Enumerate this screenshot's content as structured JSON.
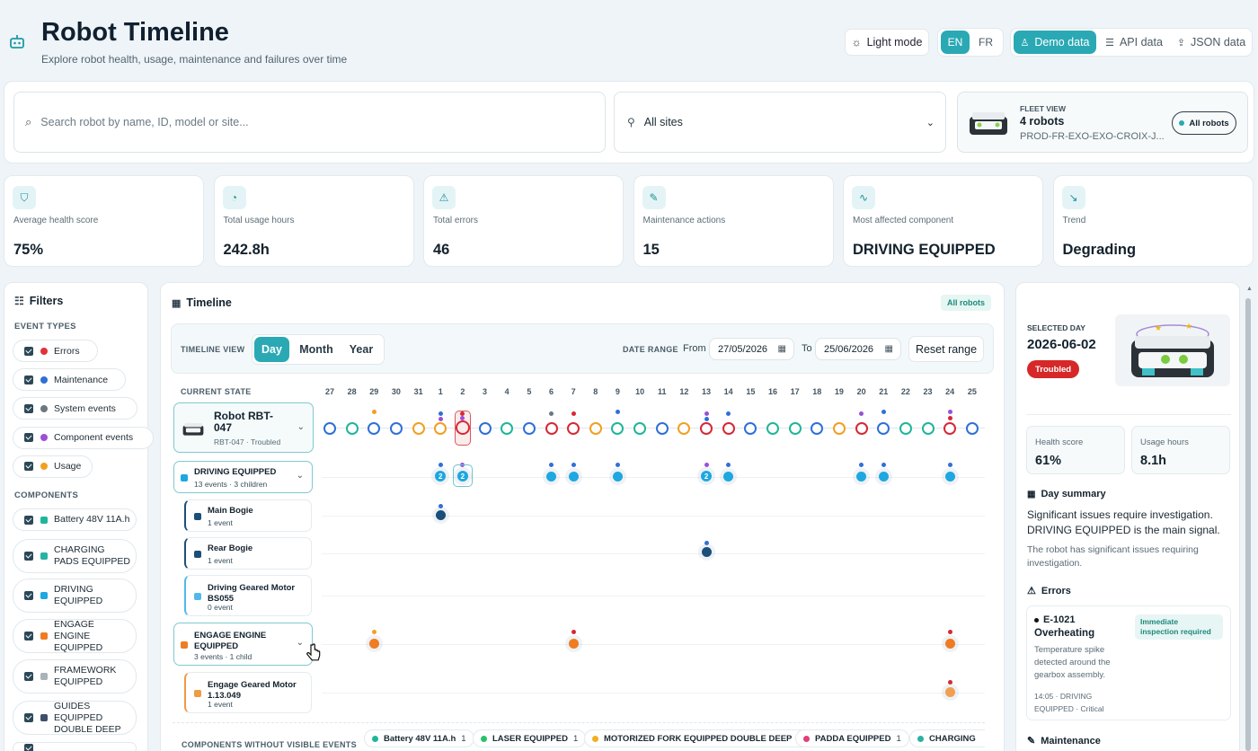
{
  "header": {
    "title": "Robot Timeline",
    "subtitle": "Explore robot health, usage, maintenance and failures over time",
    "light_mode": "Light mode",
    "lang_en": "EN",
    "lang_fr": "FR",
    "demo_data": "Demo data",
    "api_data": "API data",
    "json_data": "JSON data"
  },
  "search": {
    "placeholder": "Search robot by name, ID, model or site...",
    "site_value": "All sites"
  },
  "fleet": {
    "label": "FLEET VIEW",
    "count": "4 robots",
    "ids": "PROD-FR-EXO-EXO-CROIX-J...",
    "all_robots": "All robots"
  },
  "stats": [
    {
      "label": "Average health score",
      "value": "75%",
      "icon": "shield-icon"
    },
    {
      "label": "Total usage hours",
      "value": "242.8h",
      "icon": "gauge-icon"
    },
    {
      "label": "Total errors",
      "value": "46",
      "icon": "warning-icon"
    },
    {
      "label": "Maintenance actions",
      "value": "15",
      "icon": "wrench-icon"
    },
    {
      "label": "Most affected component",
      "value": "DRIVING EQUIPPED",
      "icon": "pulse-icon"
    },
    {
      "label": "Trend",
      "value": "Degrading",
      "icon": "trend-down-icon"
    }
  ],
  "filters": {
    "title": "Filters",
    "event_types_label": "EVENT TYPES",
    "event_types": [
      {
        "label": "Errors",
        "color": "#e0343a"
      },
      {
        "label": "Maintenance",
        "color": "#2f6fd8"
      },
      {
        "label": "System events",
        "color": "#6c7780"
      },
      {
        "label": "Component events",
        "color": "#9c4fd6"
      },
      {
        "label": "Usage",
        "color": "#f0a020"
      }
    ],
    "components_label": "COMPONENTS",
    "components": [
      {
        "label": "Battery 48V 11A.h",
        "color": "#20b59a"
      },
      {
        "label": "CHARGING PADS EQUIPPED",
        "color": "#27b3a3"
      },
      {
        "label": "DRIVING EQUIPPED",
        "color": "#1ea7e0"
      },
      {
        "label": "ENGAGE ENGINE EQUIPPED",
        "color": "#ef7c22"
      },
      {
        "label": "FRAMEWORK EQUIPPED",
        "color": "#a8b3ba"
      },
      {
        "label": "GUIDES EQUIPPED DOUBLE DEEP",
        "color": "#3f4f6a"
      }
    ]
  },
  "timeline": {
    "title": "Timeline",
    "badge": "All robots",
    "view_label": "TIMELINE VIEW",
    "views": [
      "Day",
      "Month",
      "Year"
    ],
    "date_range_label": "DATE RANGE",
    "from_label": "From",
    "from_value": "27/05/2026",
    "to_label": "To",
    "to_value": "25/06/2026",
    "reset": "Reset range",
    "current_state": "CURRENT STATE",
    "days": [
      "27",
      "28",
      "29",
      "30",
      "31",
      "1",
      "2",
      "3",
      "4",
      "5",
      "6",
      "7",
      "8",
      "9",
      "10",
      "11",
      "12",
      "13",
      "14",
      "15",
      "16",
      "17",
      "18",
      "19",
      "20",
      "21",
      "22",
      "23",
      "24",
      "25"
    ],
    "robot": {
      "name": "Robot RBT-047",
      "sub": "RBT-047 · Troubled"
    },
    "groups": [
      {
        "name": "DRIVING EQUIPPED",
        "sub": "13 events · 3 children"
      },
      {
        "name": "Main Bogie",
        "sub": "1 event"
      },
      {
        "name": "Rear Bogie",
        "sub": "1 event"
      },
      {
        "name": "Driving Geared Motor BS055",
        "sub": "0 event"
      },
      {
        "name": "ENGAGE ENGINE EQUIPPED",
        "sub": "3 events · 1 child"
      },
      {
        "name": "Engage Geared Motor 1.13.049",
        "sub": "1 event"
      }
    ],
    "bubble_counts": [
      "2",
      "2",
      "2"
    ],
    "hidden_label": "COMPONENTS WITHOUT VISIBLE EVENTS",
    "hidden_components": [
      {
        "label": "Battery 48V 11A.h",
        "count": "1",
        "color": "#20b59a"
      },
      {
        "label": "LASER EQUIPPED",
        "count": "1",
        "color": "#29c06a"
      },
      {
        "label": "MOTORIZED FORK EQUIPPED DOUBLE DEEP",
        "count": "1",
        "color": "#f0b020"
      },
      {
        "label": "PADDA EQUIPPED",
        "count": "1",
        "color": "#e0407a"
      },
      {
        "label": "CHARGING",
        "count": "",
        "color": "#27b3a3"
      }
    ]
  },
  "day_panel": {
    "selected_label": "SELECTED DAY",
    "date": "2026-06-02",
    "status": "Troubled",
    "health_label": "Health score",
    "health_value": "61%",
    "usage_label": "Usage hours",
    "usage_value": "8.1h",
    "summary_title": "Day summary",
    "summary_main": "Significant issues require investigation. DRIVING EQUIPPED is the main signal.",
    "summary_sub": "The robot has significant issues requiring investigation.",
    "errors_title": "Errors",
    "error": {
      "code": "E-1021",
      "name": "Overheating",
      "badge": "Immediate inspection required",
      "desc": "Temperature spike detected around the gearbox assembly.",
      "meta": "14:05 · DRIVING EQUIPPED · Critical"
    },
    "maintenance_title": "Maintenance"
  }
}
